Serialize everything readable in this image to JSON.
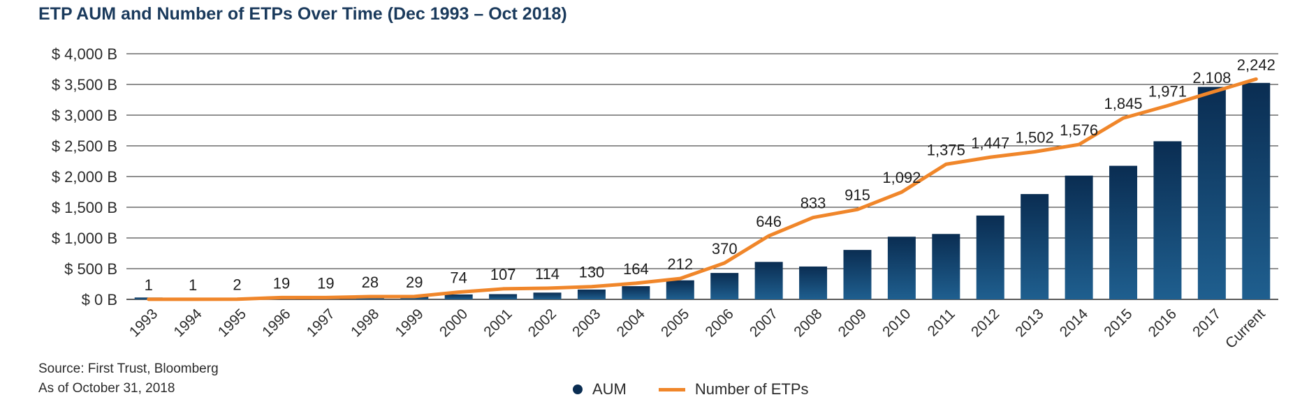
{
  "colors": {
    "aum_bar_top": "#0a2d52",
    "aum_bar_bottom": "#1f5f8f",
    "etp_line": "#f0862a",
    "title": "#1a3a5c",
    "gridline": "#222222",
    "text": "#2b2b2b"
  },
  "legend": {
    "aum_label": "AUM",
    "etp_label": "Number of ETPs"
  },
  "footnotes": {
    "source": "Source: First Trust, Bloomberg",
    "as_of": "As of October 31, 2018"
  },
  "chart_data": {
    "type": "bar",
    "title": "ETP AUM and Number of ETPs Over Time (Dec 1993 – Oct 2018)",
    "xlabel": "",
    "ylabel": "",
    "ylim": [
      0,
      4000
    ],
    "yticks": [
      0,
      500,
      1000,
      1500,
      2000,
      2500,
      3000,
      3500,
      4000
    ],
    "ytick_labels": [
      "$ 0 B",
      "$ 500 B",
      "$ 1,000 B",
      "$ 1,500 B",
      "$ 2,000 B",
      "$ 2,500 B",
      "$ 3,000 B",
      "$ 3,500 B",
      "$ 4,000 B"
    ],
    "grid": true,
    "legend_position": "bottom-center",
    "categories": [
      "1993",
      "1994",
      "1995",
      "1996",
      "1997",
      "1998",
      "1999",
      "2000",
      "2001",
      "2002",
      "2003",
      "2004",
      "2005",
      "2006",
      "2007",
      "2008",
      "2009",
      "2010",
      "2011",
      "2012",
      "2013",
      "2014",
      "2015",
      "2016",
      "2017",
      "Current"
    ],
    "series": [
      {
        "name": "AUM",
        "type": "bar",
        "axis": "left",
        "values": [
          30,
          5,
          10,
          25,
          35,
          40,
          45,
          80,
          85,
          110,
          160,
          215,
          310,
          430,
          610,
          535,
          805,
          1020,
          1065,
          1365,
          1715,
          2015,
          2175,
          2575,
          3460,
          3525
        ]
      },
      {
        "name": "Number of ETPs",
        "type": "line",
        "axis": "right",
        "values": [
          1,
          1,
          2,
          19,
          19,
          28,
          29,
          74,
          107,
          114,
          130,
          164,
          212,
          370,
          646,
          833,
          915,
          1092,
          1375,
          1447,
          1502,
          1576,
          1845,
          1971,
          2108,
          2242
        ],
        "labels": [
          "1",
          "1",
          "2",
          "19",
          "19",
          "28",
          "29",
          "74",
          "107",
          "114",
          "130",
          "164",
          "212",
          "370",
          "646",
          "833",
          "915",
          "1,092",
          "1,375",
          "1,447",
          "1,502",
          "1,576",
          "1,845",
          "1,971",
          "2,108",
          "2,242"
        ]
      }
    ],
    "y2lim": [
      0,
      2500
    ]
  }
}
